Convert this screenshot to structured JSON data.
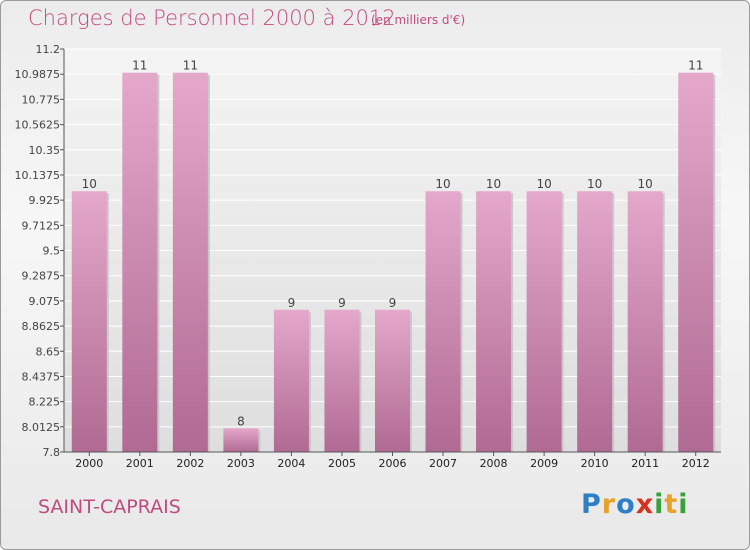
{
  "title": "Charges de Personnel 2000 à 2012",
  "subtitle": "(en milliers d'€)",
  "commune": "SAINT-CAPRAIS",
  "brand": [
    "P",
    "r",
    "o",
    "x",
    "i",
    "t",
    "i"
  ],
  "brand_colors": [
    "#2f7fc7",
    "#e8a12a",
    "#2f7fc7",
    "#d9301f",
    "#3aa03a",
    "#e8a12a",
    "#3aa03a"
  ],
  "colors": {
    "bar_top": "#e4a8cb",
    "bar_bottom": "#b06a93",
    "text": "#c14b7f",
    "grid": "#ffffff"
  },
  "chart_data": {
    "type": "bar",
    "title": "Charges de Personnel 2000 à 2012",
    "categories": [
      "2000",
      "2001",
      "2002",
      "2003",
      "2004",
      "2005",
      "2006",
      "2007",
      "2008",
      "2009",
      "2010",
      "2011",
      "2012"
    ],
    "values": [
      10,
      11,
      11,
      8,
      9,
      9,
      9,
      10,
      10,
      10,
      10,
      10,
      11
    ],
    "labels": [
      "10",
      "11",
      "11",
      "8",
      "9",
      "9",
      "9",
      "10",
      "10",
      "10",
      "10",
      "10",
      "11"
    ],
    "ylim": [
      7.8,
      11.2
    ],
    "yticks": [
      "7.8",
      "8.0125",
      "8.225",
      "8.4375",
      "8.65",
      "8.8625",
      "9.075",
      "9.2875",
      "9.5",
      "9.7125",
      "9.925",
      "10.1375",
      "10.35",
      "10.5625",
      "10.775",
      "10.9875",
      "11.2"
    ],
    "grid": true,
    "xlabel": "",
    "ylabel": ""
  }
}
